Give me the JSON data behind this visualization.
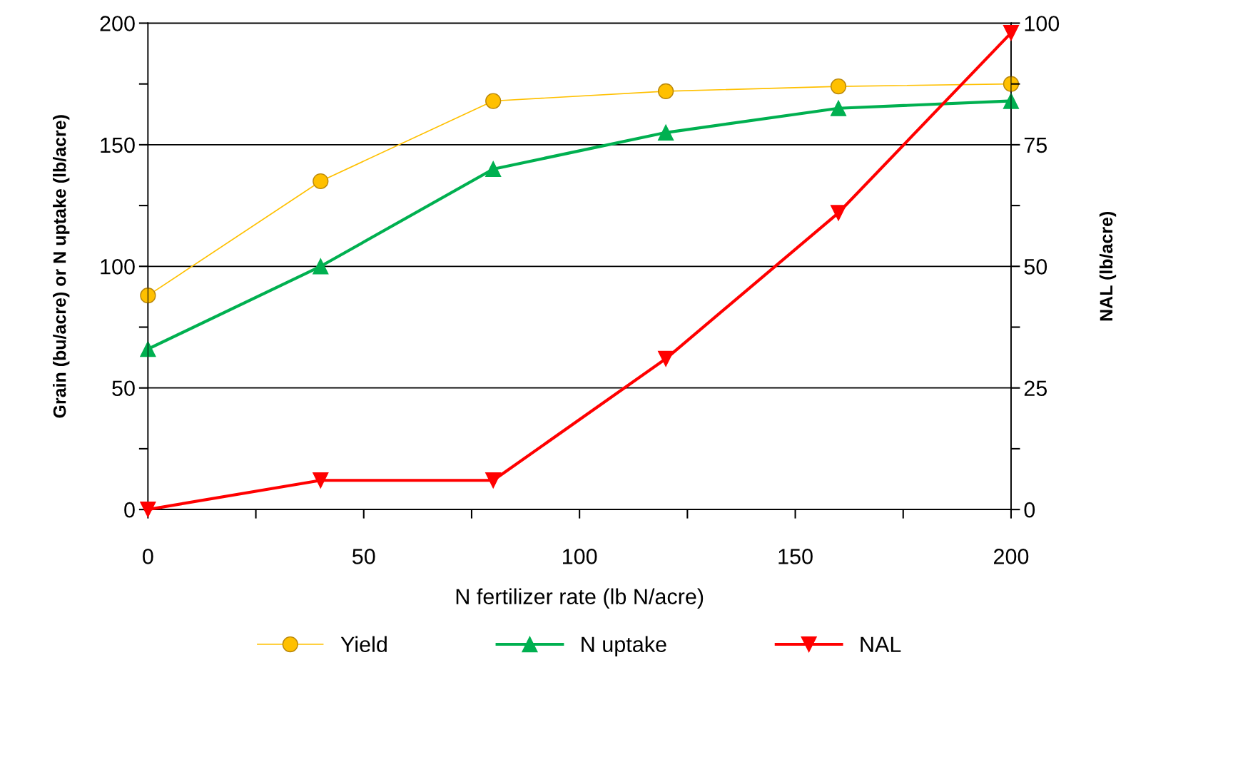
{
  "chart_data": {
    "type": "line",
    "xlabel": "N fertilizer rate (lb N/acre)",
    "ylabel": "Grain (bu/acre) or N uptake (lb/acre)",
    "y2label": "NAL (lb/acre)",
    "x": [
      0,
      40,
      80,
      120,
      160,
      200
    ],
    "series": [
      {
        "name": "Yield",
        "color": "#ffc000",
        "values": [
          88,
          135,
          168,
          172,
          174,
          175
        ],
        "marker": "circle"
      },
      {
        "name": "N uptake",
        "color": "#00b050",
        "values": [
          66,
          100,
          140,
          155,
          165,
          168
        ],
        "marker": "triangle"
      },
      {
        "name": "NAL",
        "color": "#ff0000",
        "values": [
          0,
          6,
          6,
          31,
          61,
          98
        ],
        "marker": "triangle_down",
        "axis": "y2"
      }
    ],
    "xlim": [
      0,
      200
    ],
    "xticks": [
      0,
      {
        "value": 25,
        "label": null
      },
      50,
      {
        "value": 75,
        "label": null
      },
      100,
      {
        "value": 125,
        "label": null
      },
      150,
      {
        "value": 175,
        "label": null
      },
      200
    ],
    "ylim": [
      0,
      200
    ],
    "yticks": [
      0,
      {
        "value": 25,
        "label": null
      },
      50,
      {
        "value": 75,
        "label": null
      },
      100,
      {
        "value": 125,
        "label": null
      },
      150,
      {
        "value": 175,
        "label": null
      },
      200
    ],
    "y2lim": [
      0,
      100
    ],
    "y2ticks": [
      0,
      {
        "value": 12.5,
        "label": null
      },
      25,
      {
        "value": 37.5,
        "label": null
      },
      50,
      {
        "value": 62.5,
        "label": null
      },
      75,
      {
        "value": 87.5,
        "label": null
      },
      100
    ],
    "grid": "y",
    "legend": "bottom"
  }
}
